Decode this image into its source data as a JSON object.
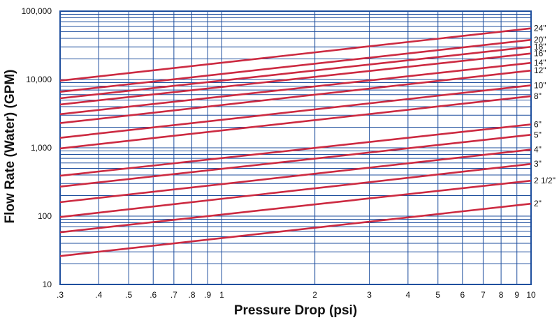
{
  "chart_data": {
    "type": "line",
    "xscale": "log",
    "yscale": "log",
    "xlim": [
      0.3,
      10
    ],
    "ylim": [
      10,
      100000
    ],
    "grid": true,
    "xlabel": "Pressure Drop (psi)",
    "ylabel": "Flow Rate (Water) (GPM)",
    "x_ticks": [
      0.3,
      0.4,
      0.5,
      0.6,
      0.7,
      0.8,
      0.9,
      1,
      2,
      3,
      4,
      5,
      6,
      7,
      8,
      9,
      10
    ],
    "x_tick_labels": [
      ".3",
      ".4",
      ".5",
      ".6",
      ".7",
      ".8",
      ".9",
      "1",
      "2",
      "3",
      "4",
      "5",
      "6",
      "7",
      "8",
      "9",
      "10"
    ],
    "y_ticks": [
      10,
      100,
      1000,
      10000,
      100000
    ],
    "y_tick_labels": [
      "10",
      "100",
      "1,000",
      "10,000",
      "100,000"
    ],
    "series": [
      {
        "name": "24\"",
        "x": [
          0.3,
          10
        ],
        "y": [
          9600,
          56000
        ]
      },
      {
        "name": "20\"",
        "x": [
          0.3,
          10
        ],
        "y": [
          6600,
          38000
        ]
      },
      {
        "name": "18\"",
        "x": [
          0.3,
          10
        ],
        "y": [
          5300,
          30000
        ]
      },
      {
        "name": "16\"",
        "x": [
          0.3,
          10
        ],
        "y": [
          4300,
          24000
        ]
      },
      {
        "name": "14\"",
        "x": [
          0.3,
          10
        ],
        "y": [
          3100,
          17500
        ]
      },
      {
        "name": "12\"",
        "x": [
          0.3,
          10
        ],
        "y": [
          2300,
          13500
        ]
      },
      {
        "name": "10\"",
        "x": [
          0.3,
          10
        ],
        "y": [
          1400,
          8200
        ]
      },
      {
        "name": "8\"",
        "x": [
          0.3,
          10
        ],
        "y": [
          980,
          5700
        ]
      },
      {
        "name": "6\"",
        "x": [
          0.3,
          10
        ],
        "y": [
          390,
          2200
        ]
      },
      {
        "name": "5\"",
        "x": [
          0.3,
          10
        ],
        "y": [
          270,
          1550
        ]
      },
      {
        "name": "4\"",
        "x": [
          0.3,
          10
        ],
        "y": [
          160,
          940
        ]
      },
      {
        "name": "3\"",
        "x": [
          0.3,
          10
        ],
        "y": [
          97,
          580
        ]
      },
      {
        "name": "2 1/2\"",
        "x": [
          0.3,
          10
        ],
        "y": [
          58,
          330
        ]
      },
      {
        "name": "2\"",
        "x": [
          0.3,
          10
        ],
        "y": [
          26,
          152
        ]
      }
    ],
    "colors": {
      "grid": "#1f4f9e",
      "line": "#cc2a41",
      "text": "#111111"
    }
  }
}
